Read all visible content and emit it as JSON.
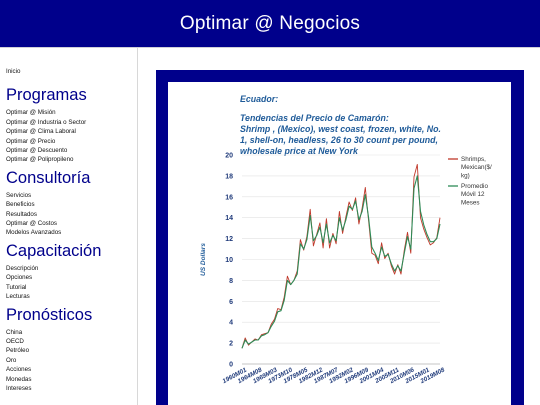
{
  "header": {
    "title": "Optimar @ Negocios",
    "background": "#00008b"
  },
  "sidebar": {
    "home_link": "Inicio",
    "sections": [
      {
        "heading": "Programas",
        "items": [
          "Optimar @ Misión",
          "Optimar @ Industria o Sector",
          "Optimar @ Clima Laboral",
          "Optimar @ Precio",
          "Optimar @ Descuento",
          "Optimar @ Polipropileno"
        ]
      },
      {
        "heading": "Consultoría",
        "items": [
          "Servicios",
          "Beneficios",
          "Resultados",
          "Optimar @ Costos",
          "Modelos Avanzados"
        ]
      },
      {
        "heading": "Capacitación",
        "items": [
          "Descripción",
          "Opciones",
          "Tutorial",
          "Lecturas"
        ]
      },
      {
        "heading": "Pronósticos",
        "items": [
          "China",
          "OECD",
          "Petróleo",
          "Oro",
          "Acciones",
          "Monedas",
          "Intereses"
        ]
      }
    ]
  },
  "chart_panel": {
    "title_lines": [
      "Ecuador:",
      "Tendencias del Precio de Camarón:",
      "Shrimp , (Mexico), west coast, frozen, white, No.",
      "1, shell-on, headless, 26 to 30 count per pound,",
      "wholesale price at New York"
    ]
  },
  "chart_data": {
    "type": "line",
    "ylabel": "US Dollars",
    "ylim": [
      0,
      20
    ],
    "y_ticks": [
      0,
      2,
      4,
      6,
      8,
      10,
      12,
      14,
      16,
      18,
      20
    ],
    "xlim": [
      1960,
      2021
    ],
    "x_tick_labels": [
      "1960M01",
      "1964M08",
      "1969M03",
      "1973M10",
      "1978M05",
      "1982M12",
      "1987M07",
      "1992M02",
      "1996M09",
      "2001M04",
      "2005M11",
      "2010M06",
      "2015M01",
      "2019M08"
    ],
    "grid": true,
    "legend_position": "right",
    "series": [
      {
        "name": "Shrimps, Mexican($/kg)",
        "color": "#c0392b",
        "x": [
          1960,
          1961,
          1962,
          1963,
          1964,
          1965,
          1966,
          1967,
          1968,
          1969,
          1970,
          1971,
          1972,
          1973,
          1974,
          1975,
          1976,
          1977,
          1978,
          1979,
          1980,
          1981,
          1982,
          1983,
          1984,
          1985,
          1986,
          1987,
          1988,
          1989,
          1990,
          1991,
          1992,
          1993,
          1994,
          1995,
          1996,
          1997,
          1998,
          1999,
          2000,
          2001,
          2002,
          2003,
          2004,
          2005,
          2006,
          2007,
          2008,
          2009,
          2010,
          2011,
          2012,
          2013,
          2014,
          2015,
          2016,
          2017,
          2018,
          2019,
          2020,
          2021
        ],
        "values": [
          1.5,
          2.5,
          1.8,
          2.1,
          2.4,
          2.3,
          2.8,
          2.9,
          3.0,
          3.8,
          4.3,
          5.3,
          5.2,
          6.4,
          8.4,
          7.6,
          8.0,
          8.9,
          11.9,
          10.9,
          12.2,
          14.8,
          11.3,
          12.4,
          13.5,
          11.1,
          13.9,
          11.1,
          12.5,
          11.5,
          14.6,
          12.5,
          14.1,
          15.5,
          14.7,
          15.9,
          13.4,
          14.9,
          16.9,
          13.7,
          10.6,
          10.4,
          9.6,
          11.6,
          10.1,
          10.6,
          9.4,
          8.6,
          9.5,
          8.6,
          10.9,
          12.6,
          10.6,
          17.9,
          19.1,
          14.0,
          12.9,
          12.1,
          11.4,
          11.6,
          12.1,
          14.0
        ]
      },
      {
        "name": "Promedio Móvil 12 Meses",
        "color": "#2e8b57",
        "x": [
          1960,
          1961,
          1962,
          1963,
          1964,
          1965,
          1966,
          1967,
          1968,
          1969,
          1970,
          1971,
          1972,
          1973,
          1974,
          1975,
          1976,
          1977,
          1978,
          1979,
          1980,
          1981,
          1982,
          1983,
          1984,
          1985,
          1986,
          1987,
          1988,
          1989,
          1990,
          1991,
          1992,
          1993,
          1994,
          1995,
          1996,
          1997,
          1998,
          1999,
          2000,
          2001,
          2002,
          2003,
          2004,
          2005,
          2006,
          2007,
          2008,
          2009,
          2010,
          2011,
          2012,
          2013,
          2014,
          2015,
          2016,
          2017,
          2018,
          2019,
          2020,
          2021
        ],
        "values": [
          1.5,
          2.3,
          1.9,
          2.1,
          2.3,
          2.3,
          2.7,
          2.8,
          3.0,
          3.6,
          4.1,
          5.0,
          5.1,
          6.1,
          8.0,
          7.6,
          8.0,
          8.6,
          11.5,
          11.0,
          11.9,
          14.2,
          11.8,
          12.3,
          13.1,
          11.6,
          13.4,
          11.6,
          12.3,
          11.8,
          14.0,
          12.8,
          13.8,
          15.1,
          14.8,
          15.6,
          13.8,
          14.6,
          16.2,
          14.0,
          11.2,
          10.6,
          9.9,
          11.2,
          10.3,
          10.5,
          9.6,
          8.9,
          9.4,
          8.9,
          10.6,
          12.2,
          11.0,
          16.8,
          18.0,
          14.6,
          13.3,
          12.4,
          11.7,
          11.7,
          12.0,
          13.4
        ]
      }
    ]
  }
}
